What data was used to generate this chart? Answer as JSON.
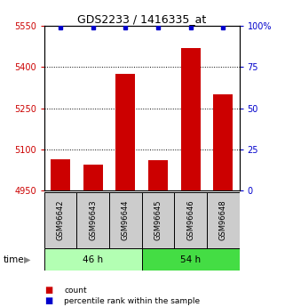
{
  "title": "GDS2233 / 1416335_at",
  "categories": [
    "GSM96642",
    "GSM96643",
    "GSM96644",
    "GSM96645",
    "GSM96646",
    "GSM96648"
  ],
  "count_values": [
    5065,
    5045,
    5375,
    5060,
    5470,
    5300
  ],
  "percentile_values": [
    100,
    100,
    100,
    100,
    100,
    100
  ],
  "ylim_left": [
    4950,
    5550
  ],
  "ylim_right": [
    0,
    100
  ],
  "yticks_left": [
    4950,
    5100,
    5250,
    5400,
    5550
  ],
  "yticks_right": [
    0,
    25,
    50,
    75,
    100
  ],
  "ytick_labels_left": [
    "4950",
    "5100",
    "5250",
    "5400",
    "5550"
  ],
  "ytick_labels_right": [
    "0",
    "25",
    "50",
    "75",
    "100%"
  ],
  "bar_color": "#cc0000",
  "dot_color": "#0000cc",
  "grid_ticks": [
    5100,
    5250,
    5400
  ],
  "group1_label": "46 h",
  "group2_label": "54 h",
  "group1_color": "#b3ffb3",
  "group2_color": "#44dd44",
  "legend_count_label": "count",
  "legend_pct_label": "percentile rank within the sample",
  "time_label": "time",
  "bar_width": 0.6,
  "base_value": 4950,
  "label_box_color": "#cccccc",
  "title_fontsize": 9,
  "axis_fontsize": 7,
  "label_fontsize": 6,
  "group_fontsize": 7.5
}
